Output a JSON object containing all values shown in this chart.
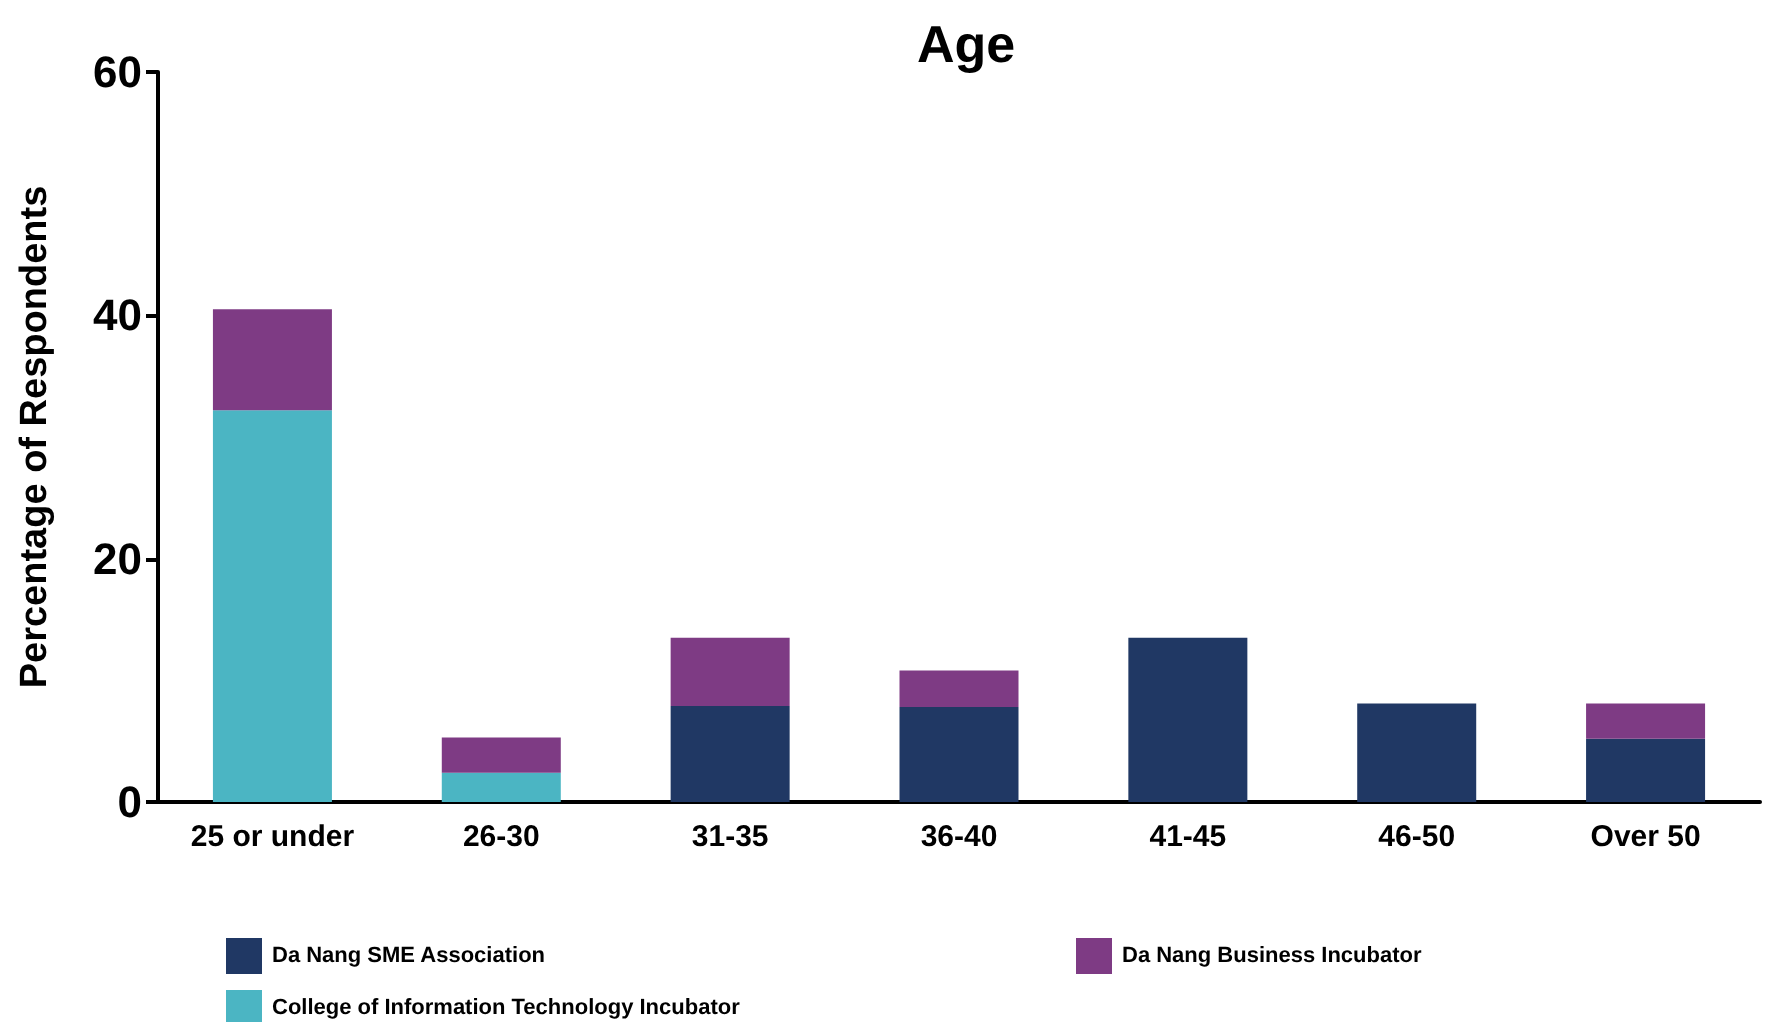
{
  "chart_data": {
    "type": "bar",
    "title": "Age",
    "ylabel": "Percentage of Respondents",
    "categories": [
      "25 or under",
      "26-30",
      "31-35",
      "36-40",
      "41-45",
      "46-50",
      "Over 50"
    ],
    "series": [
      {
        "name": "Da Nang SME Association",
        "color": "#203864",
        "values": [
          null,
          null,
          7.9,
          7.8,
          13.5,
          8.1,
          5.2
        ]
      },
      {
        "name": "College of Information Technology Incubator",
        "color": "#4bb5c3",
        "values": [
          32.2,
          2.4,
          null,
          null,
          null,
          null,
          null
        ]
      },
      {
        "name": "Da Nang Business Incubator",
        "color": "#7e3b84",
        "values": [
          8.3,
          2.9,
          5.6,
          3.0,
          null,
          null,
          2.9
        ]
      }
    ],
    "stacked": true,
    "ylim": [
      0,
      60
    ],
    "yticks": [
      0,
      20,
      40,
      60
    ],
    "grid": false,
    "legend": "bottom"
  }
}
